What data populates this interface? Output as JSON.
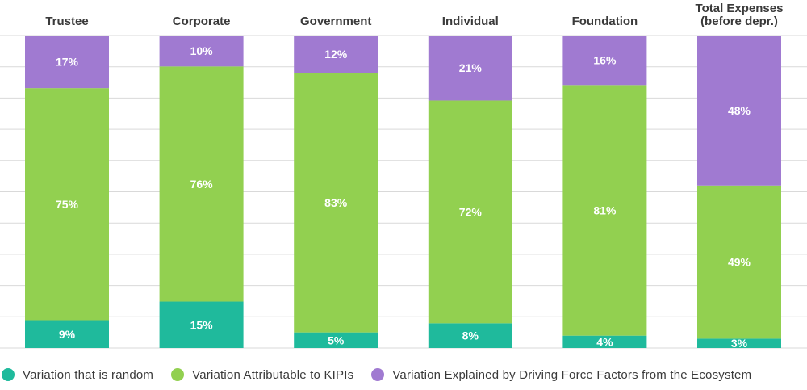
{
  "chart_data": {
    "type": "bar",
    "stacked": true,
    "orientation": "vertical",
    "categories": [
      "Trustee",
      "Corporate",
      "Government",
      "Individual",
      "Foundation",
      "Total Expenses\n(before depr.)"
    ],
    "series": [
      {
        "name": "Variation that is random",
        "color": "#1fba9c",
        "values": [
          9,
          15,
          5,
          8,
          4,
          3
        ]
      },
      {
        "name": "Variation Attributable to KIPIs",
        "color": "#92d050",
        "values": [
          75,
          76,
          83,
          72,
          81,
          49
        ]
      },
      {
        "name": "Variation Explained by Driving Force Factors from the Ecosystem",
        "color": "#a07ad1",
        "values": [
          17,
          10,
          12,
          21,
          16,
          48
        ]
      }
    ],
    "data_labels": [
      [
        "9%",
        "15%",
        "5%",
        "8%",
        "4%",
        "3%"
      ],
      [
        "75%",
        "76%",
        "83%",
        "72%",
        "81%",
        "49%"
      ],
      [
        "17%",
        "10%",
        "12%",
        "21%",
        "16%",
        "48%"
      ]
    ],
    "ylim": [
      0,
      100
    ],
    "grid": true,
    "legend_position": "bottom",
    "label_color": "#ffffff",
    "category_label_color": "#3a3a3a",
    "grid_color": "#d9d9d9"
  }
}
